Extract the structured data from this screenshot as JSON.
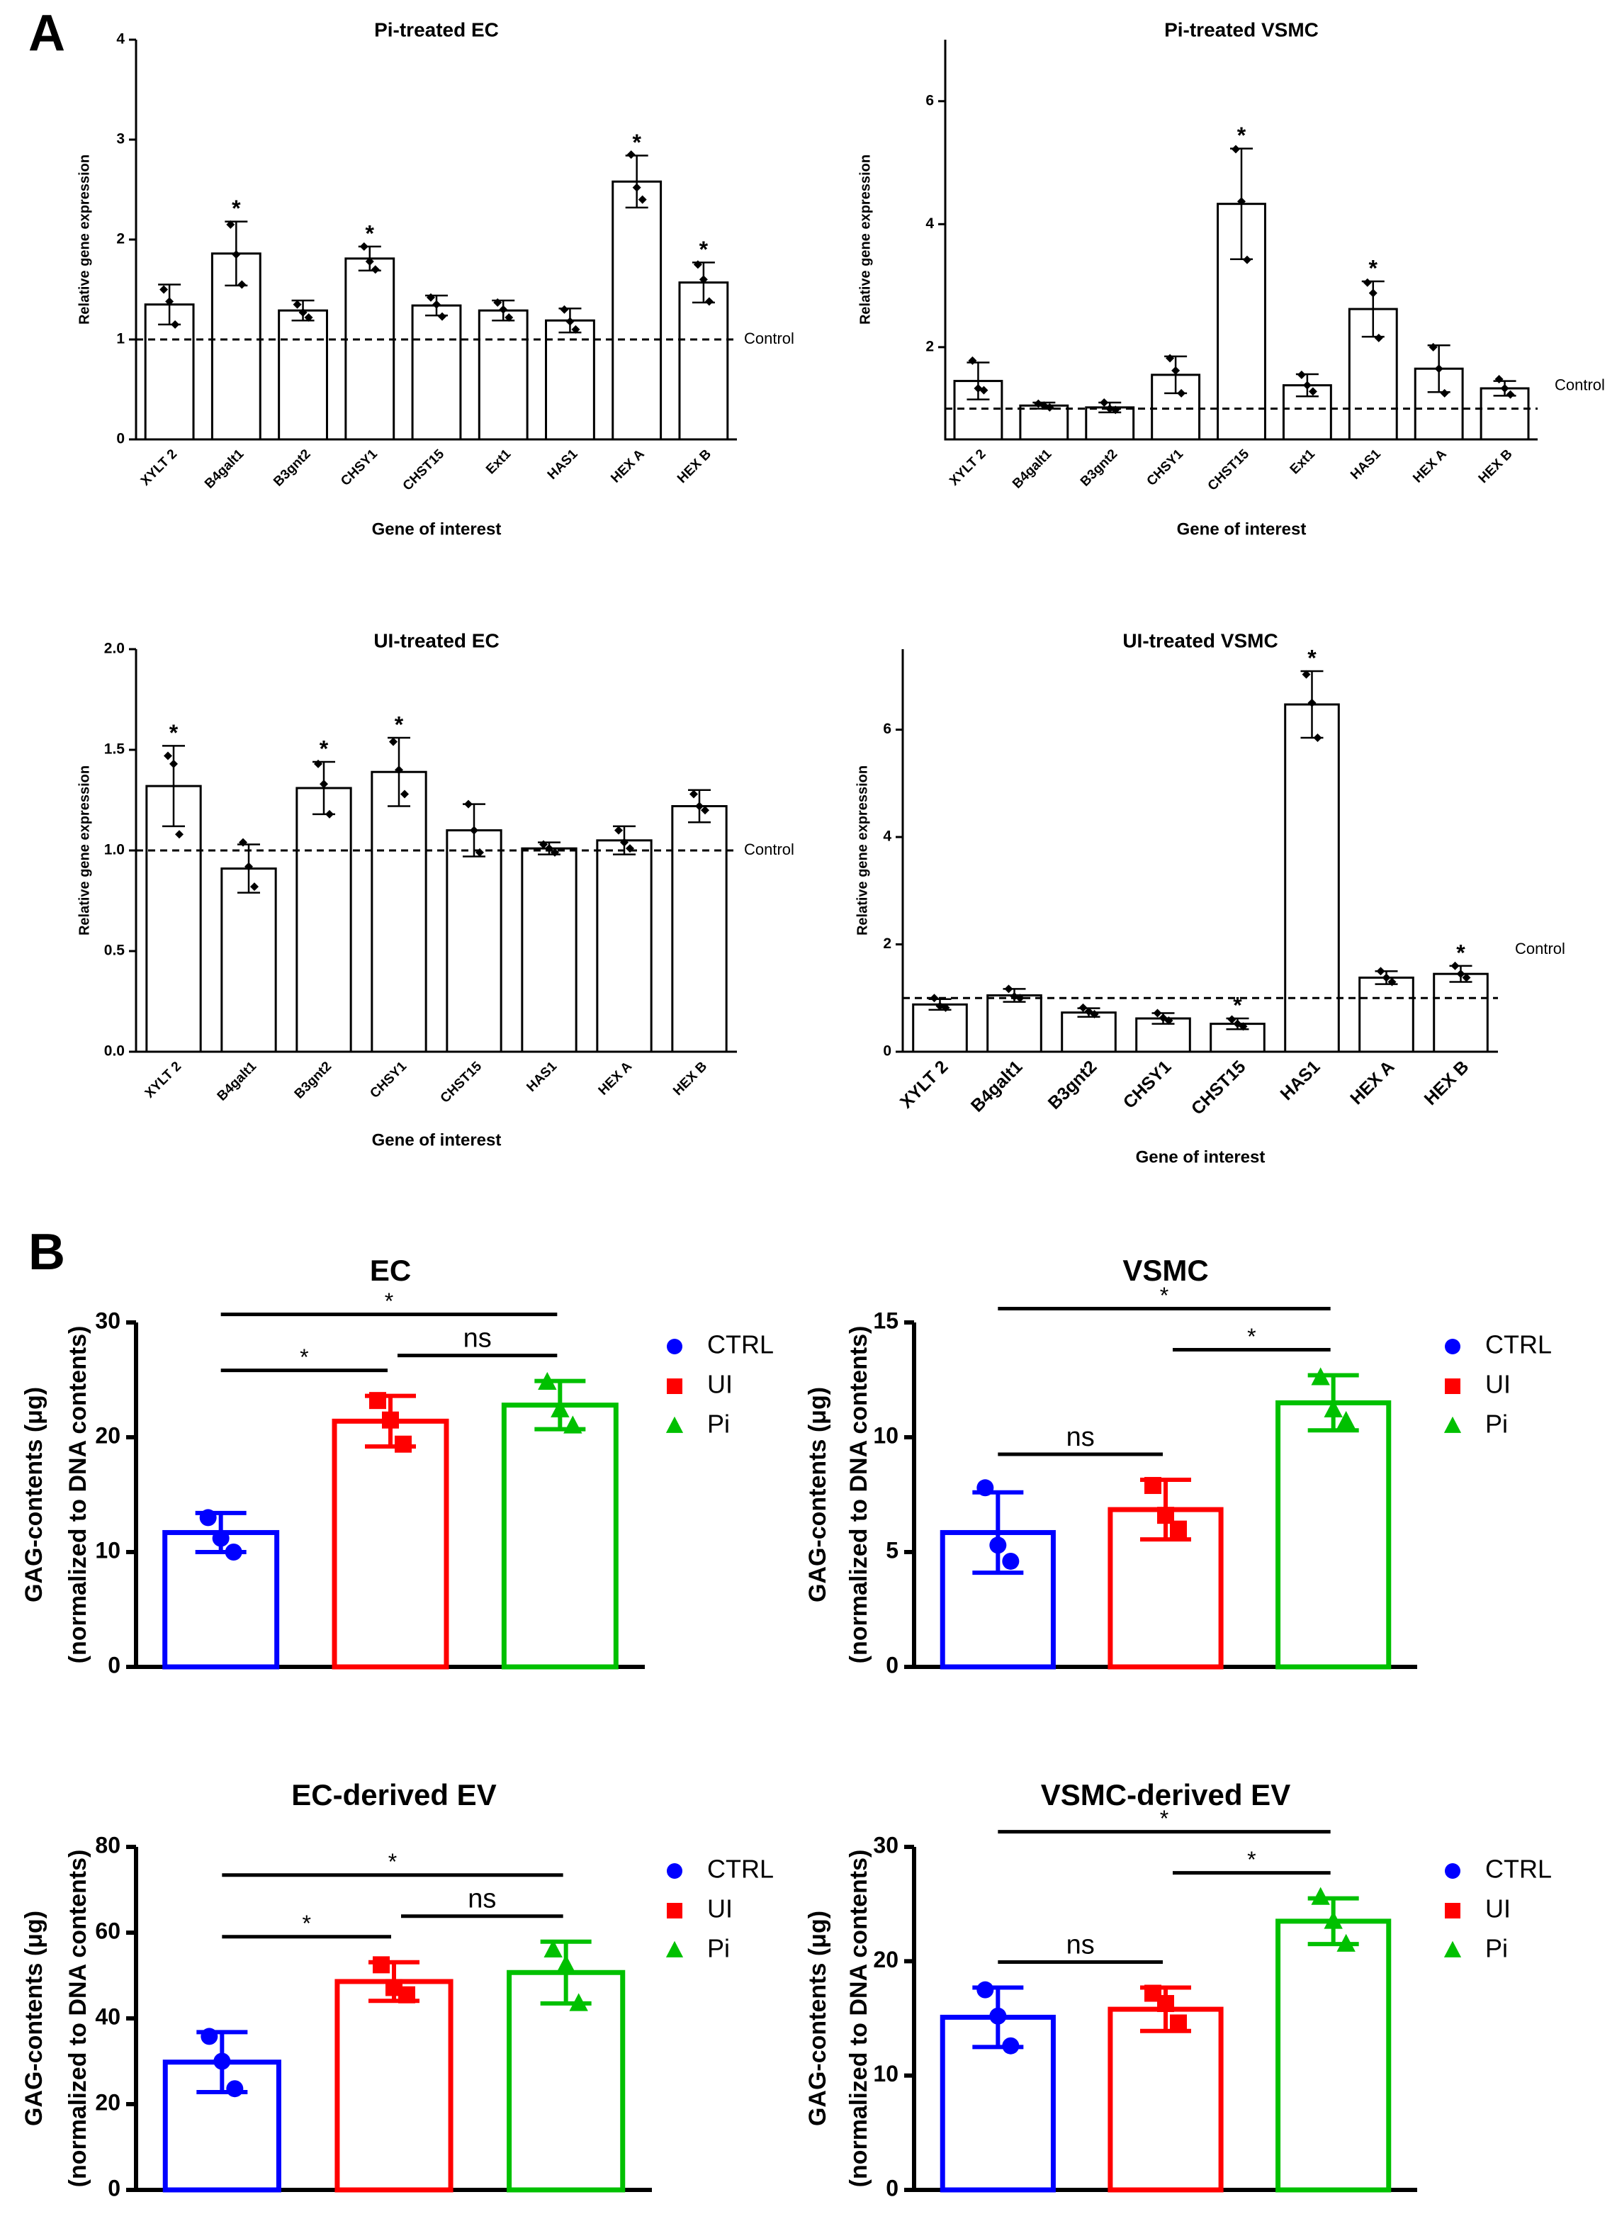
{
  "panels": [
    "A",
    "B"
  ],
  "chart_data": [
    {
      "type": "bar",
      "title": "Pi-treated EC",
      "xlabel": "Gene of interest",
      "ylabel": "Relative gene expression",
      "categories": [
        "XYLT 2",
        "B4galt1",
        "B3gnt2",
        "CHSY1",
        "CHST15",
        "Ext1",
        "HAS1",
        "HEX A",
        "HEX B"
      ],
      "values": [
        1.35,
        1.86,
        1.29,
        1.81,
        1.34,
        1.29,
        1.19,
        2.58,
        1.57
      ],
      "errors": [
        0.2,
        0.32,
        0.1,
        0.12,
        0.1,
        0.1,
        0.12,
        0.26,
        0.2
      ],
      "points": [
        [
          1.5,
          1.38,
          1.15
        ],
        [
          2.15,
          1.85,
          1.55
        ],
        [
          1.35,
          1.27,
          1.22
        ],
        [
          1.93,
          1.78,
          1.7
        ],
        [
          1.42,
          1.35,
          1.23
        ],
        [
          1.37,
          1.3,
          1.22
        ],
        [
          1.3,
          1.18,
          1.1
        ],
        [
          2.85,
          2.52,
          2.4
        ],
        [
          1.75,
          1.6,
          1.38
        ]
      ],
      "significance": [
        null,
        "*",
        null,
        "*",
        null,
        null,
        null,
        "*",
        "*"
      ],
      "reference_line": {
        "value": 1,
        "label": "Control"
      },
      "ylim": [
        0,
        4
      ],
      "yticks": [
        0,
        1,
        2,
        3,
        4
      ]
    },
    {
      "type": "bar",
      "title": "Pi-treated VSMC",
      "xlabel": "Gene of interest",
      "ylabel": "Relative gene expression",
      "categories": [
        "XYLT 2",
        "B4galt1",
        "B3gnt2",
        "CHSY1",
        "CHST15",
        "Ext1",
        "HAS1",
        "HEX A",
        "HEX B"
      ],
      "values": [
        1.45,
        1.05,
        1.02,
        1.55,
        4.33,
        1.38,
        2.62,
        1.65,
        1.33
      ],
      "errors": [
        0.3,
        0.05,
        0.08,
        0.3,
        0.9,
        0.18,
        0.45,
        0.38,
        0.12
      ],
      "points": [
        [
          1.78,
          1.33,
          1.3
        ],
        [
          1.08,
          1.05,
          1.02
        ],
        [
          1.1,
          1.0,
          0.98
        ],
        [
          1.82,
          1.62,
          1.25
        ],
        [
          5.22,
          4.37,
          3.42
        ],
        [
          1.55,
          1.38,
          1.28
        ],
        [
          3.05,
          2.88,
          2.15
        ],
        [
          2.0,
          1.65,
          1.25
        ],
        [
          1.48,
          1.33,
          1.23
        ]
      ],
      "significance": [
        null,
        null,
        null,
        null,
        "*",
        null,
        "*",
        null,
        null
      ],
      "reference_line": {
        "value": 1,
        "label": "Control"
      },
      "ylim": [
        0.5,
        7
      ],
      "yticks": [
        2,
        4,
        6
      ]
    },
    {
      "type": "bar",
      "title": "UI-treated EC",
      "xlabel": "Gene of interest",
      "ylabel": "Relative gene expression",
      "categories": [
        "XYLT 2",
        "B4galt1",
        "B3gnt2",
        "CHSY1",
        "CHST15",
        "HAS1",
        "HEX A",
        "HEX B"
      ],
      "values": [
        1.32,
        0.91,
        1.31,
        1.39,
        1.1,
        1.01,
        1.05,
        1.22
      ],
      "errors": [
        0.2,
        0.12,
        0.13,
        0.17,
        0.13,
        0.03,
        0.07,
        0.08
      ],
      "points": [
        [
          1.47,
          1.43,
          1.08
        ],
        [
          1.04,
          0.92,
          0.82
        ],
        [
          1.43,
          1.33,
          1.18
        ],
        [
          1.54,
          1.4,
          1.28
        ],
        [
          1.23,
          1.1,
          0.99
        ],
        [
          1.03,
          1.01,
          0.99
        ],
        [
          1.1,
          1.04,
          1.01
        ],
        [
          1.28,
          1.22,
          1.2
        ]
      ],
      "significance": [
        "*",
        null,
        "*",
        "*",
        null,
        null,
        null,
        null
      ],
      "reference_line": {
        "value": 1,
        "label": "Control"
      },
      "ylim": [
        0,
        2
      ],
      "yticks": [
        {
          "value": 0,
          "label": "0.0"
        },
        {
          "value": 0.5,
          "label": "0.5"
        },
        {
          "value": 1,
          "label": "1.0"
        },
        {
          "value": 1.5,
          "label": "1.5"
        },
        {
          "value": 2,
          "label": "2.0"
        }
      ]
    },
    {
      "type": "bar",
      "title": "UI-treated VSMC",
      "xlabel": "Gene of interest",
      "ylabel": "Relative gene expression",
      "categories": [
        "XYLT 2",
        "B4galt1",
        "B3gnt2",
        "CHSY1",
        "CHST15",
        "HAS1",
        "HEX A",
        "HEX B"
      ],
      "values": [
        0.88,
        1.05,
        0.73,
        0.62,
        0.52,
        6.47,
        1.38,
        1.45
      ],
      "errors": [
        0.1,
        0.12,
        0.08,
        0.1,
        0.1,
        0.62,
        0.12,
        0.15
      ],
      "points": [
        [
          1.0,
          0.85,
          0.82
        ],
        [
          1.17,
          1.03,
          1.0
        ],
        [
          0.82,
          0.75,
          0.7
        ],
        [
          0.72,
          0.63,
          0.58
        ],
        [
          0.6,
          0.52,
          0.47
        ],
        [
          7.03,
          6.5,
          5.85
        ],
        [
          1.5,
          1.38,
          1.3
        ],
        [
          1.6,
          1.45,
          1.38
        ]
      ],
      "significance": [
        null,
        null,
        null,
        null,
        "*",
        "*",
        null,
        "*"
      ],
      "reference_line": {
        "value": 1,
        "label": "Control"
      },
      "ylim": [
        0,
        7.5
      ],
      "yticks": [
        0,
        2,
        4,
        6
      ]
    },
    {
      "type": "bar",
      "title": "EC",
      "ylabel": [
        "GAG-contents (μg)",
        "(normalized to DNA contents)"
      ],
      "categories": [
        "CTRL",
        "UI",
        "Pi"
      ],
      "colors": [
        "#0000ff",
        "#ff0000",
        "#00c000"
      ],
      "markers": [
        "circle",
        "square",
        "triangle"
      ],
      "values": [
        11.7,
        21.4,
        22.8
      ],
      "errors": [
        1.7,
        2.2,
        2.1
      ],
      "points": [
        [
          13.0,
          11.2,
          10.0
        ],
        [
          23.2,
          21.5,
          19.4
        ],
        [
          24.8,
          22.4,
          21.0
        ]
      ],
      "comparisons": [
        {
          "from": 0,
          "to": 2,
          "label": "*"
        },
        {
          "from": 0,
          "to": 1,
          "label": "*"
        },
        {
          "from": 1,
          "to": 2,
          "label": "ns"
        }
      ],
      "ylim": [
        0,
        30
      ],
      "yticks": [
        0,
        10,
        20,
        30
      ],
      "legend": "right"
    },
    {
      "type": "bar",
      "title": "VSMC",
      "ylabel": [
        "GAG-contents (μg)",
        "(normalized to DNA contents)"
      ],
      "categories": [
        "CTRL",
        "UI",
        "Pi"
      ],
      "colors": [
        "#0000ff",
        "#ff0000",
        "#00c000"
      ],
      "markers": [
        "circle",
        "square",
        "triangle"
      ],
      "values": [
        5.85,
        6.85,
        11.5
      ],
      "errors": [
        1.75,
        1.3,
        1.2
      ],
      "points": [
        [
          7.8,
          5.3,
          4.6
        ],
        [
          7.9,
          6.6,
          6.0
        ],
        [
          12.6,
          11.2,
          10.7
        ]
      ],
      "comparisons": [
        {
          "from": 0,
          "to": 2,
          "label": "*"
        },
        {
          "from": 1,
          "to": 2,
          "label": "*"
        },
        {
          "from": 0,
          "to": 1,
          "label": "ns"
        }
      ],
      "ylim": [
        0,
        15
      ],
      "yticks": [
        0,
        5,
        10,
        15
      ],
      "legend": "right"
    },
    {
      "type": "bar",
      "title": "EC-derived EV",
      "ylabel": [
        "GAG-contents (μg)",
        "(normalized to DNA contents)"
      ],
      "categories": [
        "CTRL",
        "UI",
        "Pi"
      ],
      "colors": [
        "#0000ff",
        "#ff0000",
        "#00c000"
      ],
      "markers": [
        "circle",
        "square",
        "triangle"
      ],
      "values": [
        29.8,
        48.6,
        50.7
      ],
      "errors": [
        7,
        4.5,
        7.2
      ],
      "points": [
        [
          35.8,
          30,
          23.6
        ],
        [
          52.5,
          47.2,
          45.5
        ],
        [
          56,
          52.5,
          43.5
        ]
      ],
      "comparisons": [
        {
          "from": 0,
          "to": 2,
          "label": "*"
        },
        {
          "from": 0,
          "to": 1,
          "label": "*"
        },
        {
          "from": 1,
          "to": 2,
          "label": "ns"
        }
      ],
      "ylim": [
        0,
        80
      ],
      "yticks": [
        0,
        20,
        40,
        60,
        80
      ],
      "legend": "right"
    },
    {
      "type": "bar",
      "title": "VSMC-derived EV",
      "ylabel": [
        "GAG-contents (μg)",
        "(normalized to DNA contents)"
      ],
      "categories": [
        "CTRL",
        "UI",
        "Pi"
      ],
      "colors": [
        "#0000ff",
        "#ff0000",
        "#00c000"
      ],
      "markers": [
        "circle",
        "square",
        "triangle"
      ],
      "values": [
        15.1,
        15.8,
        23.5
      ],
      "errors": [
        2.6,
        1.9,
        2
      ],
      "points": [
        [
          17.5,
          15.2,
          12.6
        ],
        [
          17.2,
          16.3,
          14.6
        ],
        [
          25.6,
          23.5,
          21.5
        ]
      ],
      "comparisons": [
        {
          "from": 0,
          "to": 2,
          "label": "*"
        },
        {
          "from": 1,
          "to": 2,
          "label": "*"
        },
        {
          "from": 0,
          "to": 1,
          "label": "ns"
        }
      ],
      "ylim": [
        0,
        30
      ],
      "yticks": [
        0,
        10,
        20,
        30
      ],
      "legend": "right"
    }
  ]
}
